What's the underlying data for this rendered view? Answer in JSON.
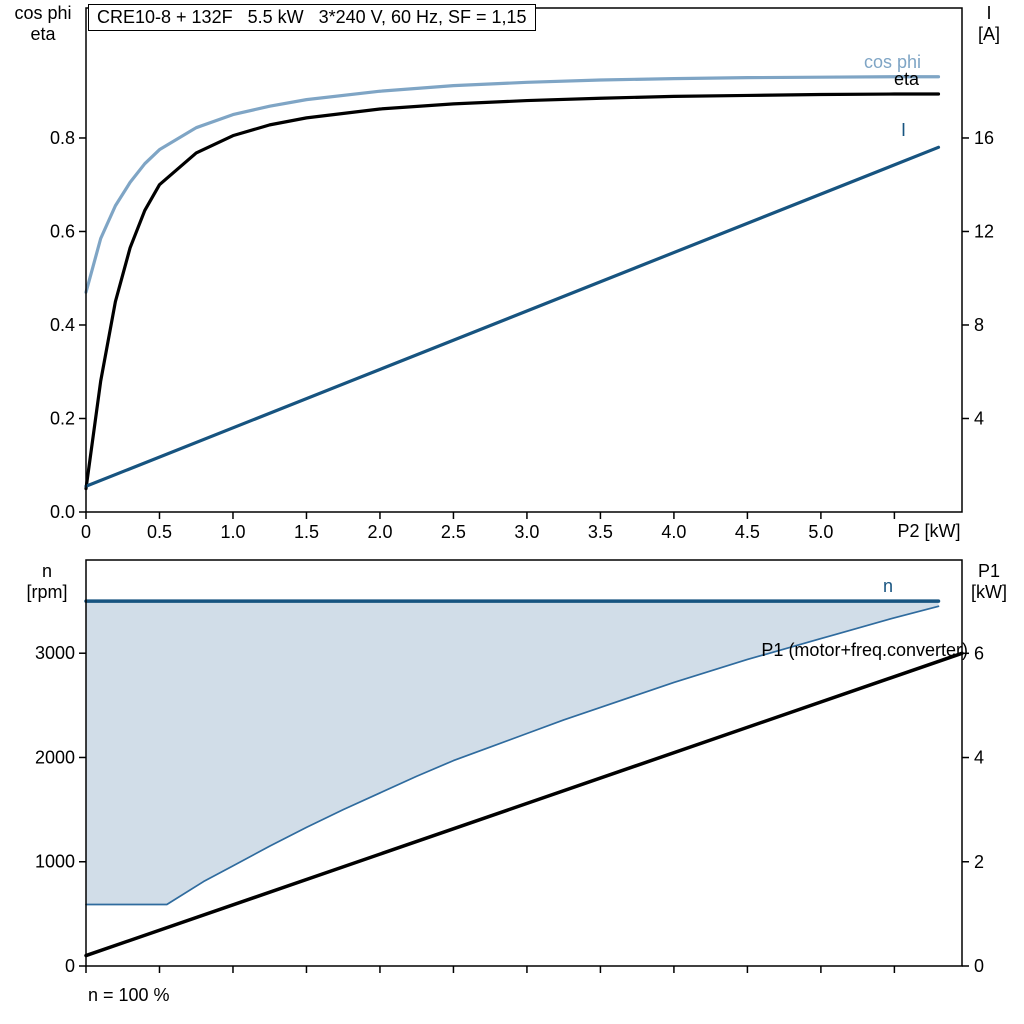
{
  "chart_data": [
    {
      "type": "line",
      "title": "CRE10-8 + 132F   5.5 kW   3*240 V, 60 Hz, SF = 1,15",
      "x_axis": {
        "label": "P2 [kW]",
        "min": 0,
        "max": 5.96,
        "ticks": [
          0,
          0.5,
          1.0,
          1.5,
          2.0,
          2.5,
          3.0,
          3.5,
          4.0,
          4.5,
          5.0,
          5.5
        ],
        "tick_labels": [
          "0",
          "0.5",
          "1.0",
          "1.5",
          "2.0",
          "2.5",
          "3.0",
          "3.5",
          "4.0",
          "4.5",
          "5.0",
          ""
        ]
      },
      "y_left": {
        "label_lines": [
          "cos phi",
          "eta"
        ],
        "min": 0,
        "max": 1.078,
        "ticks": [
          0.0,
          0.2,
          0.4,
          0.6,
          0.8
        ],
        "tick_labels": [
          "0.0",
          "0.2",
          "0.4",
          "0.6",
          "0.8"
        ]
      },
      "y_right": {
        "label_lines": [
          "I",
          "[A]"
        ],
        "min": 0,
        "max": 21.56,
        "ticks": [
          4,
          8,
          12,
          16
        ],
        "tick_labels": [
          "4",
          "8",
          "12",
          "16"
        ]
      },
      "series": [
        {
          "name": "cos phi",
          "axis": "left",
          "color": "#7fa5c5",
          "width": 3.2,
          "x": [
            0,
            0.1,
            0.2,
            0.3,
            0.4,
            0.5,
            0.75,
            1.0,
            1.25,
            1.5,
            2.0,
            2.5,
            3.0,
            3.5,
            4.0,
            4.5,
            5.0,
            5.5,
            5.8
          ],
          "y": [
            0.47,
            0.585,
            0.655,
            0.705,
            0.745,
            0.775,
            0.822,
            0.85,
            0.868,
            0.882,
            0.9,
            0.912,
            0.919,
            0.924,
            0.927,
            0.929,
            0.93,
            0.931,
            0.931
          ]
        },
        {
          "name": "eta",
          "axis": "left",
          "color": "#000000",
          "width": 3.2,
          "x": [
            0,
            0.1,
            0.2,
            0.3,
            0.4,
            0.5,
            0.75,
            1.0,
            1.25,
            1.5,
            2.0,
            2.5,
            3.0,
            3.5,
            4.0,
            4.5,
            5.0,
            5.5,
            5.8
          ],
          "y": [
            0.05,
            0.28,
            0.45,
            0.565,
            0.645,
            0.7,
            0.768,
            0.805,
            0.828,
            0.843,
            0.862,
            0.873,
            0.88,
            0.885,
            0.889,
            0.891,
            0.893,
            0.894,
            0.894
          ]
        },
        {
          "name": "I",
          "axis": "right",
          "color": "#175480",
          "width": 3.2,
          "x": [
            0,
            5.8
          ],
          "y": [
            1.1,
            15.6
          ]
        }
      ],
      "curve_labels": [
        {
          "text": "cos phi",
          "color": "#7fa5c5"
        },
        {
          "text": "eta",
          "color": "#000000"
        },
        {
          "text": "I",
          "color": "#175480"
        }
      ]
    },
    {
      "type": "line",
      "x_axis": {
        "min": 0,
        "max": 5.96,
        "ticks": [
          0,
          0.5,
          1.0,
          1.5,
          2.0,
          2.5,
          3.0,
          3.5,
          4.0,
          4.5,
          5.0,
          5.5
        ],
        "tick_labels": []
      },
      "y_left": {
        "label_lines": [
          "n",
          "[rpm]"
        ],
        "min": 0,
        "max": 3894,
        "ticks": [
          0,
          1000,
          2000,
          3000
        ],
        "tick_labels": [
          "0",
          "1000",
          "2000",
          "3000"
        ]
      },
      "y_right": {
        "label_lines": [
          "P1",
          "[kW]"
        ],
        "min": 0,
        "max": 7.79,
        "ticks": [
          0,
          2,
          4,
          6
        ],
        "tick_labels": [
          "0",
          "2",
          "4",
          "6"
        ]
      },
      "series": [
        {
          "name": "n",
          "axis": "left",
          "color": "#175480",
          "width": 3.5,
          "x": [
            0,
            5.8
          ],
          "y": [
            3500,
            3500
          ]
        },
        {
          "name": "speed range lower bound",
          "axis": "left",
          "color": "#2f6b9e",
          "width": 1.7,
          "x": [
            0,
            0.55,
            0.8,
            1.0,
            1.25,
            1.5,
            1.75,
            2.0,
            2.25,
            2.5,
            2.75,
            3.0,
            3.25,
            3.5,
            3.75,
            4.0,
            4.25,
            4.5,
            4.75,
            5.0,
            5.25,
            5.5,
            5.8
          ],
          "y": [
            590,
            590,
            810,
            960,
            1150,
            1330,
            1500,
            1660,
            1820,
            1970,
            2100,
            2230,
            2360,
            2480,
            2600,
            2720,
            2830,
            2940,
            3040,
            3140,
            3240,
            3340,
            3450
          ]
        },
        {
          "name": "P1 (motor+freq.converter)",
          "axis": "right",
          "color": "#000000",
          "width": 3.5,
          "x": [
            0,
            5.96
          ],
          "y": [
            0.2,
            6.0
          ]
        }
      ],
      "fill_area": {
        "series": 1,
        "top_value": 3500,
        "color": "#ccd9e5",
        "opacity": 0.9
      },
      "curve_labels": [
        {
          "text": "n",
          "color": "#175480"
        },
        {
          "text": "P1 (motor+freq.converter)",
          "color": "#000000"
        }
      ],
      "annotation": "n = 100 %"
    }
  ]
}
